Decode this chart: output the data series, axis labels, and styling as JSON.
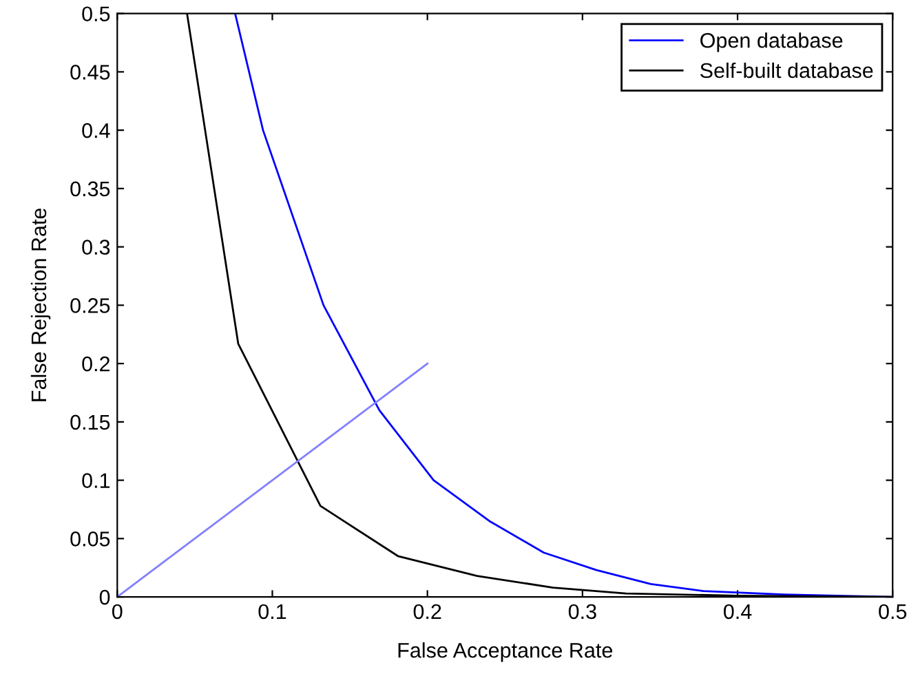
{
  "chart_data": {
    "type": "line",
    "xlabel": "False Acceptance Rate",
    "ylabel": "False Rejection Rate",
    "xlim": [
      0,
      0.5
    ],
    "ylim": [
      0,
      0.5
    ],
    "xticks": [
      0,
      0.1,
      0.2,
      0.3,
      0.4,
      0.5
    ],
    "yticks": [
      0,
      0.05,
      0.1,
      0.15,
      0.2,
      0.25,
      0.3,
      0.35,
      0.4,
      0.45,
      0.5
    ],
    "grid": false,
    "legend": "top right",
    "marker": "none",
    "line_style": "solid",
    "series": [
      {
        "name": "Open database",
        "color": "#0000ff",
        "x": [
          0.076,
          0.094,
          0.133,
          0.169,
          0.204,
          0.24,
          0.275,
          0.309,
          0.344,
          0.378,
          0.43,
          0.5
        ],
        "values": [
          0.5,
          0.4,
          0.25,
          0.16,
          0.1,
          0.065,
          0.038,
          0.023,
          0.011,
          0.005,
          0.002,
          0
        ]
      },
      {
        "name": "Self-built database",
        "color": "#000000",
        "x": [
          0.045,
          0.078,
          0.131,
          0.181,
          0.232,
          0.281,
          0.328,
          0.4,
          0.5
        ],
        "values": [
          0.5,
          0.217,
          0.078,
          0.035,
          0.018,
          0.008,
          0.003,
          0.001,
          0
        ]
      },
      {
        "color": "#8080ff",
        "x": [
          0,
          0.2
        ],
        "values": [
          0,
          0.2
        ]
      }
    ]
  }
}
